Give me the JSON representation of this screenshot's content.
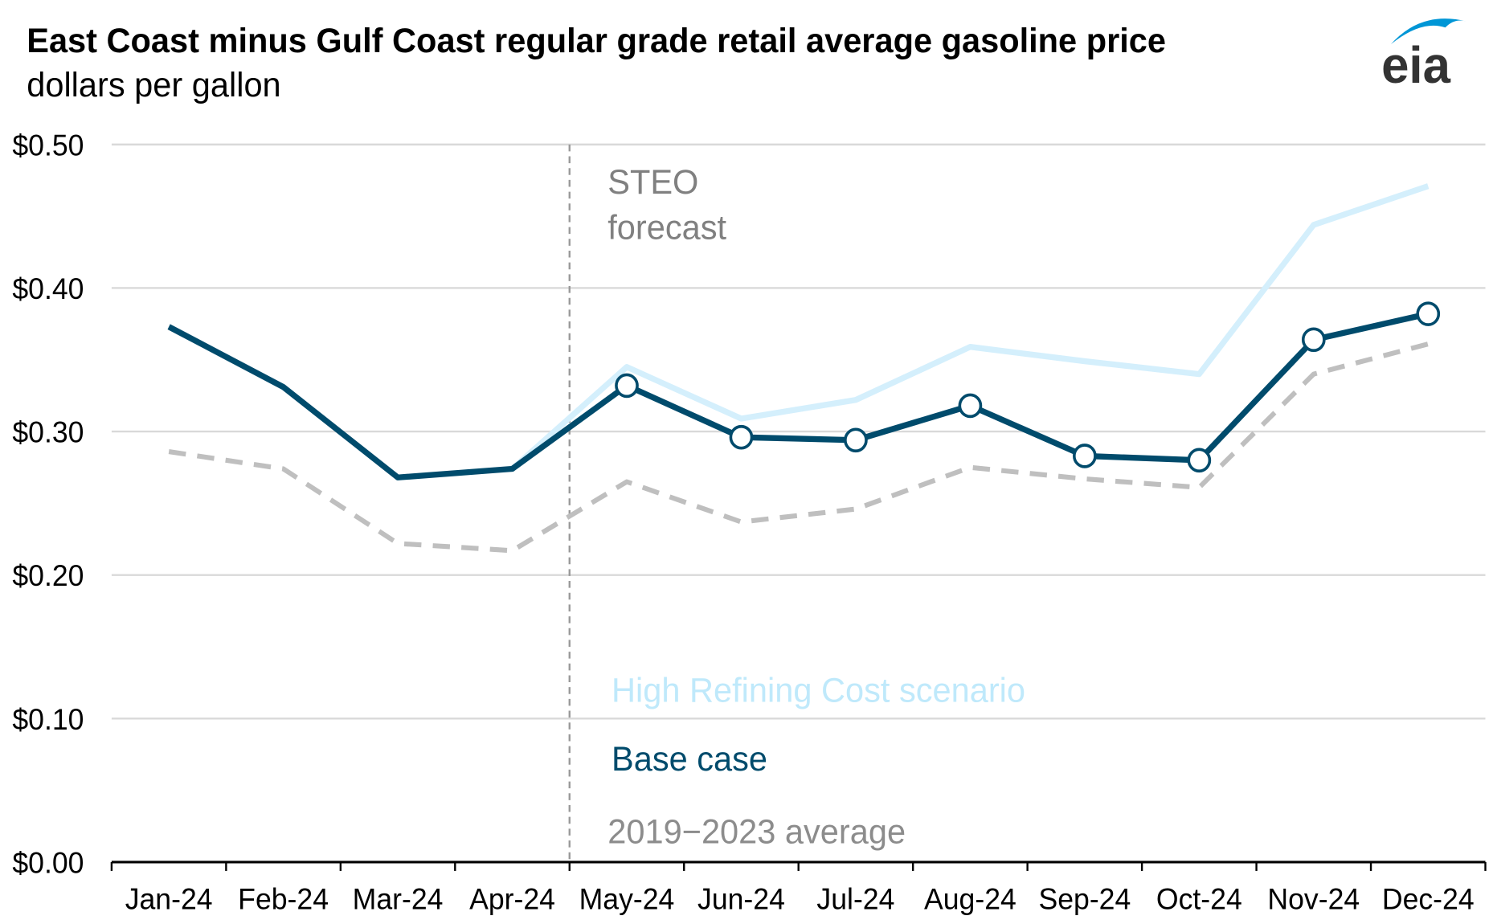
{
  "header": {
    "title": "East Coast minus Gulf Coast regular grade retail average gasoline price",
    "subtitle": "dollars per gallon",
    "logo_text": "eia"
  },
  "chart_data": {
    "type": "line",
    "title": "East Coast minus Gulf Coast regular grade retail average gasoline price",
    "ylabel": "dollars per gallon",
    "ylim": [
      0,
      0.5
    ],
    "yticks": [
      "$0.00",
      "$0.10",
      "$0.20",
      "$0.30",
      "$0.40",
      "$0.50"
    ],
    "ytick_values": [
      0,
      0.1,
      0.2,
      0.3,
      0.4,
      0.5
    ],
    "grid": true,
    "categories": [
      "Jan-24",
      "Feb-24",
      "Mar-24",
      "Apr-24",
      "May-24",
      "Jun-24",
      "Jul-24",
      "Aug-24",
      "Sep-24",
      "Oct-24",
      "Nov-24",
      "Dec-24"
    ],
    "forecast_start": "May-24",
    "forecast_label_line1": "STEO",
    "forecast_label_line2": "forecast",
    "series": [
      {
        "name": "High Refining Cost scenario",
        "color": "#d4effc",
        "style": "solid",
        "values": [
          null,
          null,
          null,
          0.274,
          0.345,
          0.309,
          0.322,
          0.359,
          0.349,
          0.34,
          0.444,
          0.471
        ]
      },
      {
        "name": "Base case",
        "color": "#004b6c",
        "style": "solid-markers-forecast",
        "values": [
          0.373,
          0.331,
          0.268,
          0.274,
          0.332,
          0.296,
          0.294,
          0.318,
          0.283,
          0.28,
          0.364,
          0.382
        ]
      },
      {
        "name": "2019−2023 average",
        "color": "#bfbfbf",
        "style": "dashed",
        "values": [
          0.286,
          0.274,
          0.222,
          0.217,
          0.265,
          0.237,
          0.246,
          0.275,
          0.267,
          0.261,
          0.34,
          0.361
        ]
      }
    ],
    "legend_colors": {
      "high": "#bfe9fb",
      "base": "#004b6c",
      "avg": "#8c8c8c"
    }
  }
}
